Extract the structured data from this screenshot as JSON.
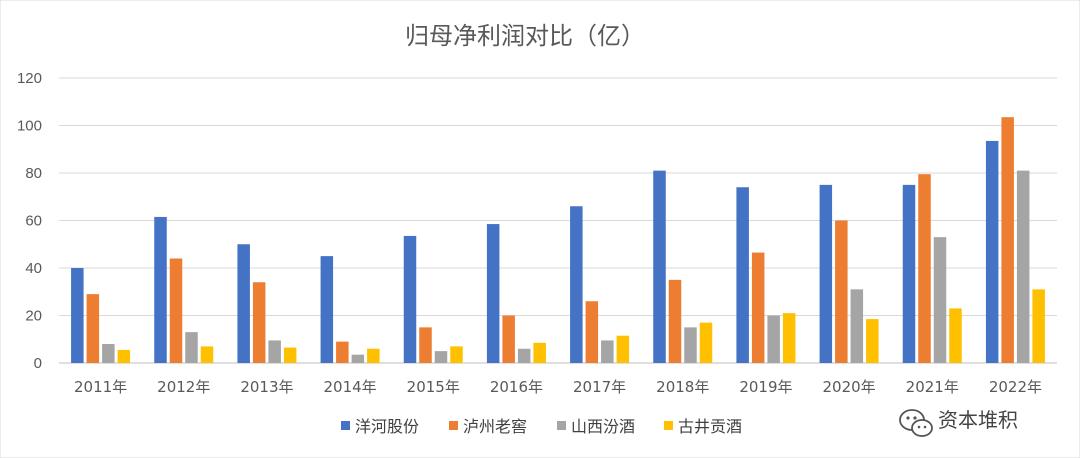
{
  "chart_data": {
    "type": "bar",
    "title": "归母净利润对比（亿）",
    "categories": [
      "2011年",
      "2012年",
      "2013年",
      "2014年",
      "2015年",
      "2016年",
      "2017年",
      "2018年",
      "2019年",
      "2020年",
      "2021年",
      "2022年"
    ],
    "series": [
      {
        "name": "洋河股份",
        "color": "#4472C4",
        "values": [
          40,
          61.5,
          50,
          45,
          53.5,
          58.5,
          66,
          81,
          74,
          75,
          75,
          93.5
        ]
      },
      {
        "name": "泸州老窖",
        "color": "#ED7D31",
        "values": [
          29,
          44,
          34,
          9,
          15,
          20,
          26,
          35,
          46.5,
          60,
          79.5,
          103.5
        ]
      },
      {
        "name": "山西汾酒",
        "color": "#A5A5A5",
        "values": [
          8,
          13,
          9.5,
          3.5,
          5,
          6,
          9.5,
          15,
          20,
          31,
          53,
          81
        ]
      },
      {
        "name": "古井贡酒",
        "color": "#FFC000",
        "values": [
          5.5,
          7,
          6.5,
          6,
          7,
          8.5,
          11.5,
          17,
          21,
          18.5,
          23,
          31
        ]
      }
    ],
    "yticks": [
      "0",
      "20",
      "40",
      "60",
      "80",
      "100",
      "120"
    ],
    "ylim": [
      0,
      120
    ],
    "grid": true,
    "legend_position": "bottom"
  },
  "watermark": {
    "icon": "wechat-icon",
    "text": "资本堆积"
  }
}
